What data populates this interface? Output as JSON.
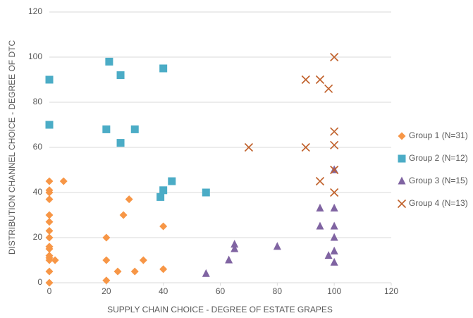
{
  "chart_data": {
    "type": "scatter",
    "xlabel": "SUPPLY CHAIN CHOICE - DEGREE OF ESTATE GRAPES",
    "ylabel": "DISTRIBUTION CHANNEL CHOICE - DEGREE OF DTC",
    "xlim": [
      0,
      120
    ],
    "xticks": [
      0,
      20,
      40,
      60,
      80,
      100,
      120
    ],
    "ylim": [
      0,
      120
    ],
    "yticks": [
      0,
      20,
      40,
      60,
      80,
      100,
      120
    ],
    "grid": true,
    "legend": "right",
    "series": [
      {
        "name": "Group 1 (N=31)",
        "color": "#f79646",
        "marker": "diamond",
        "x": [
          0,
          0,
          0,
          0,
          0,
          0,
          0,
          0,
          0,
          0,
          0,
          0,
          0,
          0,
          0,
          2,
          5,
          20,
          20,
          20,
          24,
          26,
          28,
          30,
          33,
          40,
          40
        ],
        "values": [
          45,
          41,
          40,
          37,
          30,
          27,
          23,
          20,
          16,
          15,
          12,
          11,
          10,
          5,
          0,
          10,
          45,
          20,
          10,
          1,
          5,
          30,
          37,
          5,
          10,
          25,
          6
        ]
      },
      {
        "name": "Group 2 (N=12)",
        "color": "#4bacc6",
        "marker": "square",
        "x": [
          0,
          0,
          21,
          25,
          40,
          20,
          30,
          25,
          39,
          40,
          43,
          55
        ],
        "values": [
          90,
          70,
          98,
          92,
          95,
          68,
          68,
          62,
          38,
          41,
          45,
          40
        ]
      },
      {
        "name": "Group 3 (N=15)",
        "color": "#8064a2",
        "marker": "triangle",
        "x": [
          55,
          63,
          65,
          65,
          80,
          95,
          95,
          100,
          100,
          100,
          100,
          100,
          100,
          98
        ],
        "values": [
          4,
          10,
          17,
          15,
          16,
          25,
          33,
          50,
          33,
          25,
          20,
          14,
          9,
          12
        ]
      },
      {
        "name": "Group 4 (N=13)",
        "color": "#c0602a",
        "marker": "x",
        "x": [
          100,
          90,
          95,
          98,
          100,
          100,
          70,
          90,
          100,
          95,
          100
        ],
        "values": [
          100,
          90,
          90,
          86,
          67,
          61,
          60,
          60,
          50,
          45,
          40
        ]
      }
    ]
  }
}
